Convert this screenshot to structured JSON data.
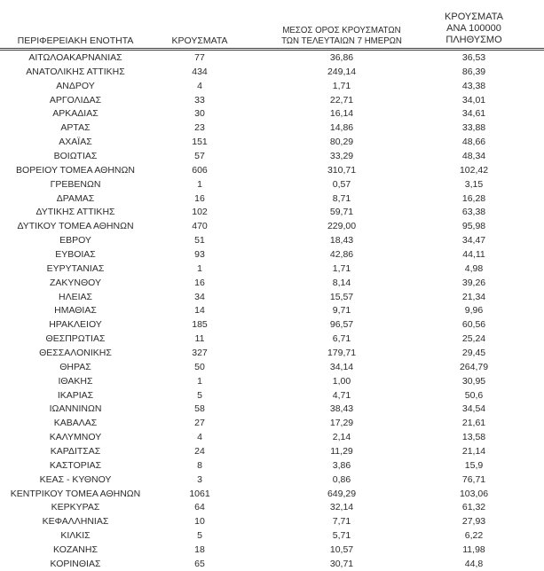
{
  "colors": {
    "background": "#ffffff",
    "text": "#2b2b2b",
    "header_rule": "#3c3c3c"
  },
  "table": {
    "columns": [
      {
        "id": "region",
        "label": "ΠΕΡΙΦΕΡΕΙΑΚΗ ΕΝΟΤΗΤΑ"
      },
      {
        "id": "cases",
        "label": "ΚΡΟΥΣΜΑΤΑ"
      },
      {
        "id": "avg7",
        "label_line1": "ΜΕΣΟΣ ΟΡΟΣ ΚΡΟΥΣΜΑΤΩΝ",
        "label_line2": "ΤΩΝ ΤΕΛΕΥΤΑΙΩΝ 7 ΗΜΕΡΩΝ"
      },
      {
        "id": "per100k",
        "label_line1": "ΚΡΟΥΣΜΑΤΑ ΑΝΑ 100000",
        "label_line2": "ΠΛΗΘΥΣΜΟ"
      }
    ],
    "rows": [
      [
        "ΑΙΤΩΛΟΑΚΑΡΝΑΝΙΑΣ",
        "77",
        "36,86",
        "36,53"
      ],
      [
        "ΑΝΑΤΟΛΙΚΗΣ ΑΤΤΙΚΗΣ",
        "434",
        "249,14",
        "86,39"
      ],
      [
        "ΑΝΔΡΟΥ",
        "4",
        "1,71",
        "43,38"
      ],
      [
        "ΑΡΓΟΛΙΔΑΣ",
        "33",
        "22,71",
        "34,01"
      ],
      [
        "ΑΡΚΑΔΙΑΣ",
        "30",
        "16,14",
        "34,61"
      ],
      [
        "ΑΡΤΑΣ",
        "23",
        "14,86",
        "33,88"
      ],
      [
        "ΑΧΑΪΑΣ",
        "151",
        "80,29",
        "48,66"
      ],
      [
        "ΒΟΙΩΤΙΑΣ",
        "57",
        "33,29",
        "48,34"
      ],
      [
        "ΒΟΡΕΙΟΥ ΤΟΜΕΑ ΑΘΗΝΩΝ",
        "606",
        "310,71",
        "102,42"
      ],
      [
        "ΓΡΕΒΕΝΩΝ",
        "1",
        "0,57",
        "3,15"
      ],
      [
        "ΔΡΑΜΑΣ",
        "16",
        "8,71",
        "16,28"
      ],
      [
        "ΔΥΤΙΚΗΣ ΑΤΤΙΚΗΣ",
        "102",
        "59,71",
        "63,38"
      ],
      [
        "ΔΥΤΙΚΟΥ ΤΟΜΕΑ ΑΘΗΝΩΝ",
        "470",
        "229,00",
        "95,98"
      ],
      [
        "ΕΒΡΟΥ",
        "51",
        "18,43",
        "34,47"
      ],
      [
        "ΕΥΒΟΙΑΣ",
        "93",
        "42,86",
        "44,11"
      ],
      [
        "ΕΥΡΥΤΑΝΙΑΣ",
        "1",
        "1,71",
        "4,98"
      ],
      [
        "ΖΑΚΥΝΘΟΥ",
        "16",
        "8,14",
        "39,26"
      ],
      [
        "ΗΛΕΙΑΣ",
        "34",
        "15,57",
        "21,34"
      ],
      [
        "ΗΜΑΘΙΑΣ",
        "14",
        "9,71",
        "9,96"
      ],
      [
        "ΗΡΑΚΛΕΙΟΥ",
        "185",
        "96,57",
        "60,56"
      ],
      [
        "ΘΕΣΠΡΩΤΙΑΣ",
        "11",
        "6,71",
        "25,24"
      ],
      [
        "ΘΕΣΣΑΛΟΝΙΚΗΣ",
        "327",
        "179,71",
        "29,45"
      ],
      [
        "ΘΗΡΑΣ",
        "50",
        "34,14",
        "264,79"
      ],
      [
        "ΙΘΑΚΗΣ",
        "1",
        "1,00",
        "30,95"
      ],
      [
        "ΙΚΑΡΙΑΣ",
        "5",
        "4,71",
        "50,6"
      ],
      [
        "ΙΩΑΝΝΙΝΩΝ",
        "58",
        "38,43",
        "34,54"
      ],
      [
        "ΚΑΒΑΛΑΣ",
        "27",
        "17,29",
        "21,61"
      ],
      [
        "ΚΑΛΥΜΝΟΥ",
        "4",
        "2,14",
        "13,58"
      ],
      [
        "ΚΑΡΔΙΤΣΑΣ",
        "24",
        "11,29",
        "21,14"
      ],
      [
        "ΚΑΣΤΟΡΙΑΣ",
        "8",
        "3,86",
        "15,9"
      ],
      [
        "ΚΕΑΣ - ΚΥΘΝΟΥ",
        "3",
        "0,86",
        "76,71"
      ],
      [
        "ΚΕΝΤΡΙΚΟΥ ΤΟΜΕΑ ΑΘΗΝΩΝ",
        "1061",
        "649,29",
        "103,06"
      ],
      [
        "ΚΕΡΚΥΡΑΣ",
        "64",
        "32,14",
        "61,32"
      ],
      [
        "ΚΕΦΑΛΛΗΝΙΑΣ",
        "10",
        "7,71",
        "27,93"
      ],
      [
        "ΚΙΛΚΙΣ",
        "5",
        "5,71",
        "6,22"
      ],
      [
        "ΚΟΖΑΝΗΣ",
        "18",
        "10,57",
        "11,98"
      ],
      [
        "ΚΟΡΙΝΘΙΑΣ",
        "65",
        "30,71",
        "44,8"
      ]
    ]
  }
}
